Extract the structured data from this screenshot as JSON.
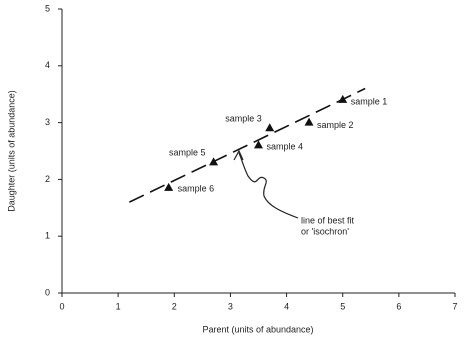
{
  "chart_data": {
    "type": "scatter",
    "x_label": "Parent (units of abundance)",
    "y_label": "Daughter (units of abundance)",
    "x": [
      5.0,
      4.4,
      3.7,
      3.5,
      2.7,
      1.9
    ],
    "values": [
      3.4,
      3.0,
      2.9,
      2.6,
      2.3,
      1.85
    ],
    "labels": [
      "sample 1",
      "sample 2",
      "sample 3",
      "sample 4",
      "sample 5",
      "sample 6"
    ],
    "color": "#111111",
    "fit": {
      "x": [
        1.2,
        5.4
      ],
      "y": [
        1.6,
        3.6
      ]
    },
    "annotation": [
      "line of best fit",
      "or 'isochron'"
    ],
    "xlim": [
      0,
      7
    ],
    "ylim": [
      0,
      5
    ],
    "xticks": [
      0,
      1,
      2,
      3,
      4,
      5,
      6,
      7
    ],
    "yticks": [
      0,
      1,
      2,
      3,
      4,
      5
    ]
  }
}
